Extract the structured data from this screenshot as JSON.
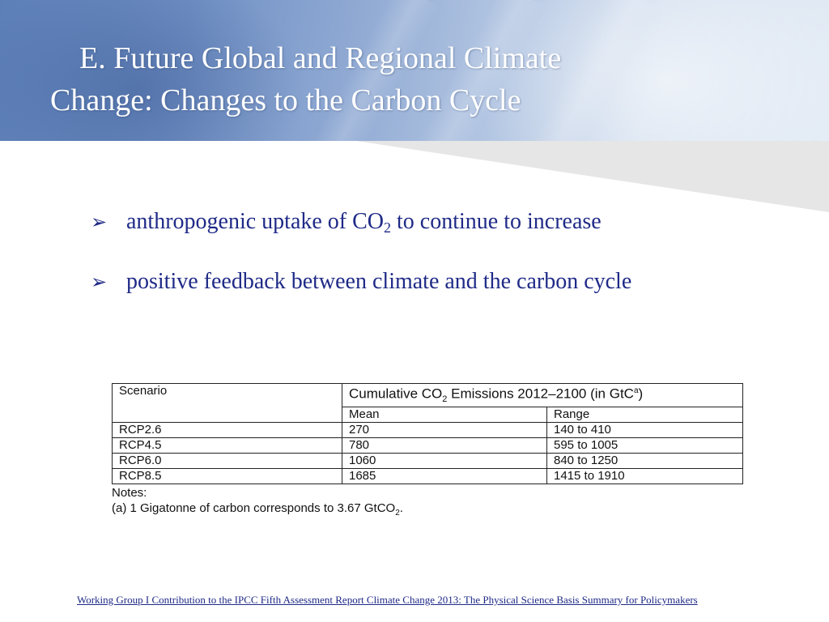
{
  "slide": {
    "title_line1": "E. Future Global and Regional Climate",
    "title_line2": "Change: Changes to the Carbon Cycle",
    "bullets": [
      {
        "before": "anthropogenic uptake of CO",
        "sub": "2",
        "after": " to continue to increase"
      },
      {
        "text": "positive feedback between climate and the carbon cycle"
      }
    ],
    "bullet_icon": "arrowhead-bullet-icon"
  },
  "table": {
    "scenario_header": "Scenario",
    "emissions_header": {
      "pre": "Cumulative CO",
      "sub": "2",
      "mid": " Emissions 2012–2100 (in GtC",
      "sup": "a",
      "post": ")"
    },
    "mean_header": "Mean",
    "range_header": "Range",
    "rows": [
      {
        "scenario": "RCP2.6",
        "mean": "270",
        "range": "140 to 410"
      },
      {
        "scenario": "RCP4.5",
        "mean": "780",
        "range": "595 to 1005"
      },
      {
        "scenario": "RCP6.0",
        "mean": "1060",
        "range": "840 to 1250"
      },
      {
        "scenario": "RCP8.5",
        "mean": "1685",
        "range": "1415 to 1910"
      }
    ],
    "notes_label": "Notes:",
    "note_a": {
      "pre": "(a) 1 Gigatonne of carbon corresponds to 3.67 GtCO",
      "sub": "2",
      "post": "."
    }
  },
  "citation": "Working Group I Contribution to the IPCC Fifth Assessment Report Climate Change 2013: The Physical Science Basis Summary for Policymakers",
  "colors": {
    "header_blue": "#6f8fc4",
    "bullet_text": "#1f2a87",
    "wedge_gray": "#e6e6e6"
  }
}
